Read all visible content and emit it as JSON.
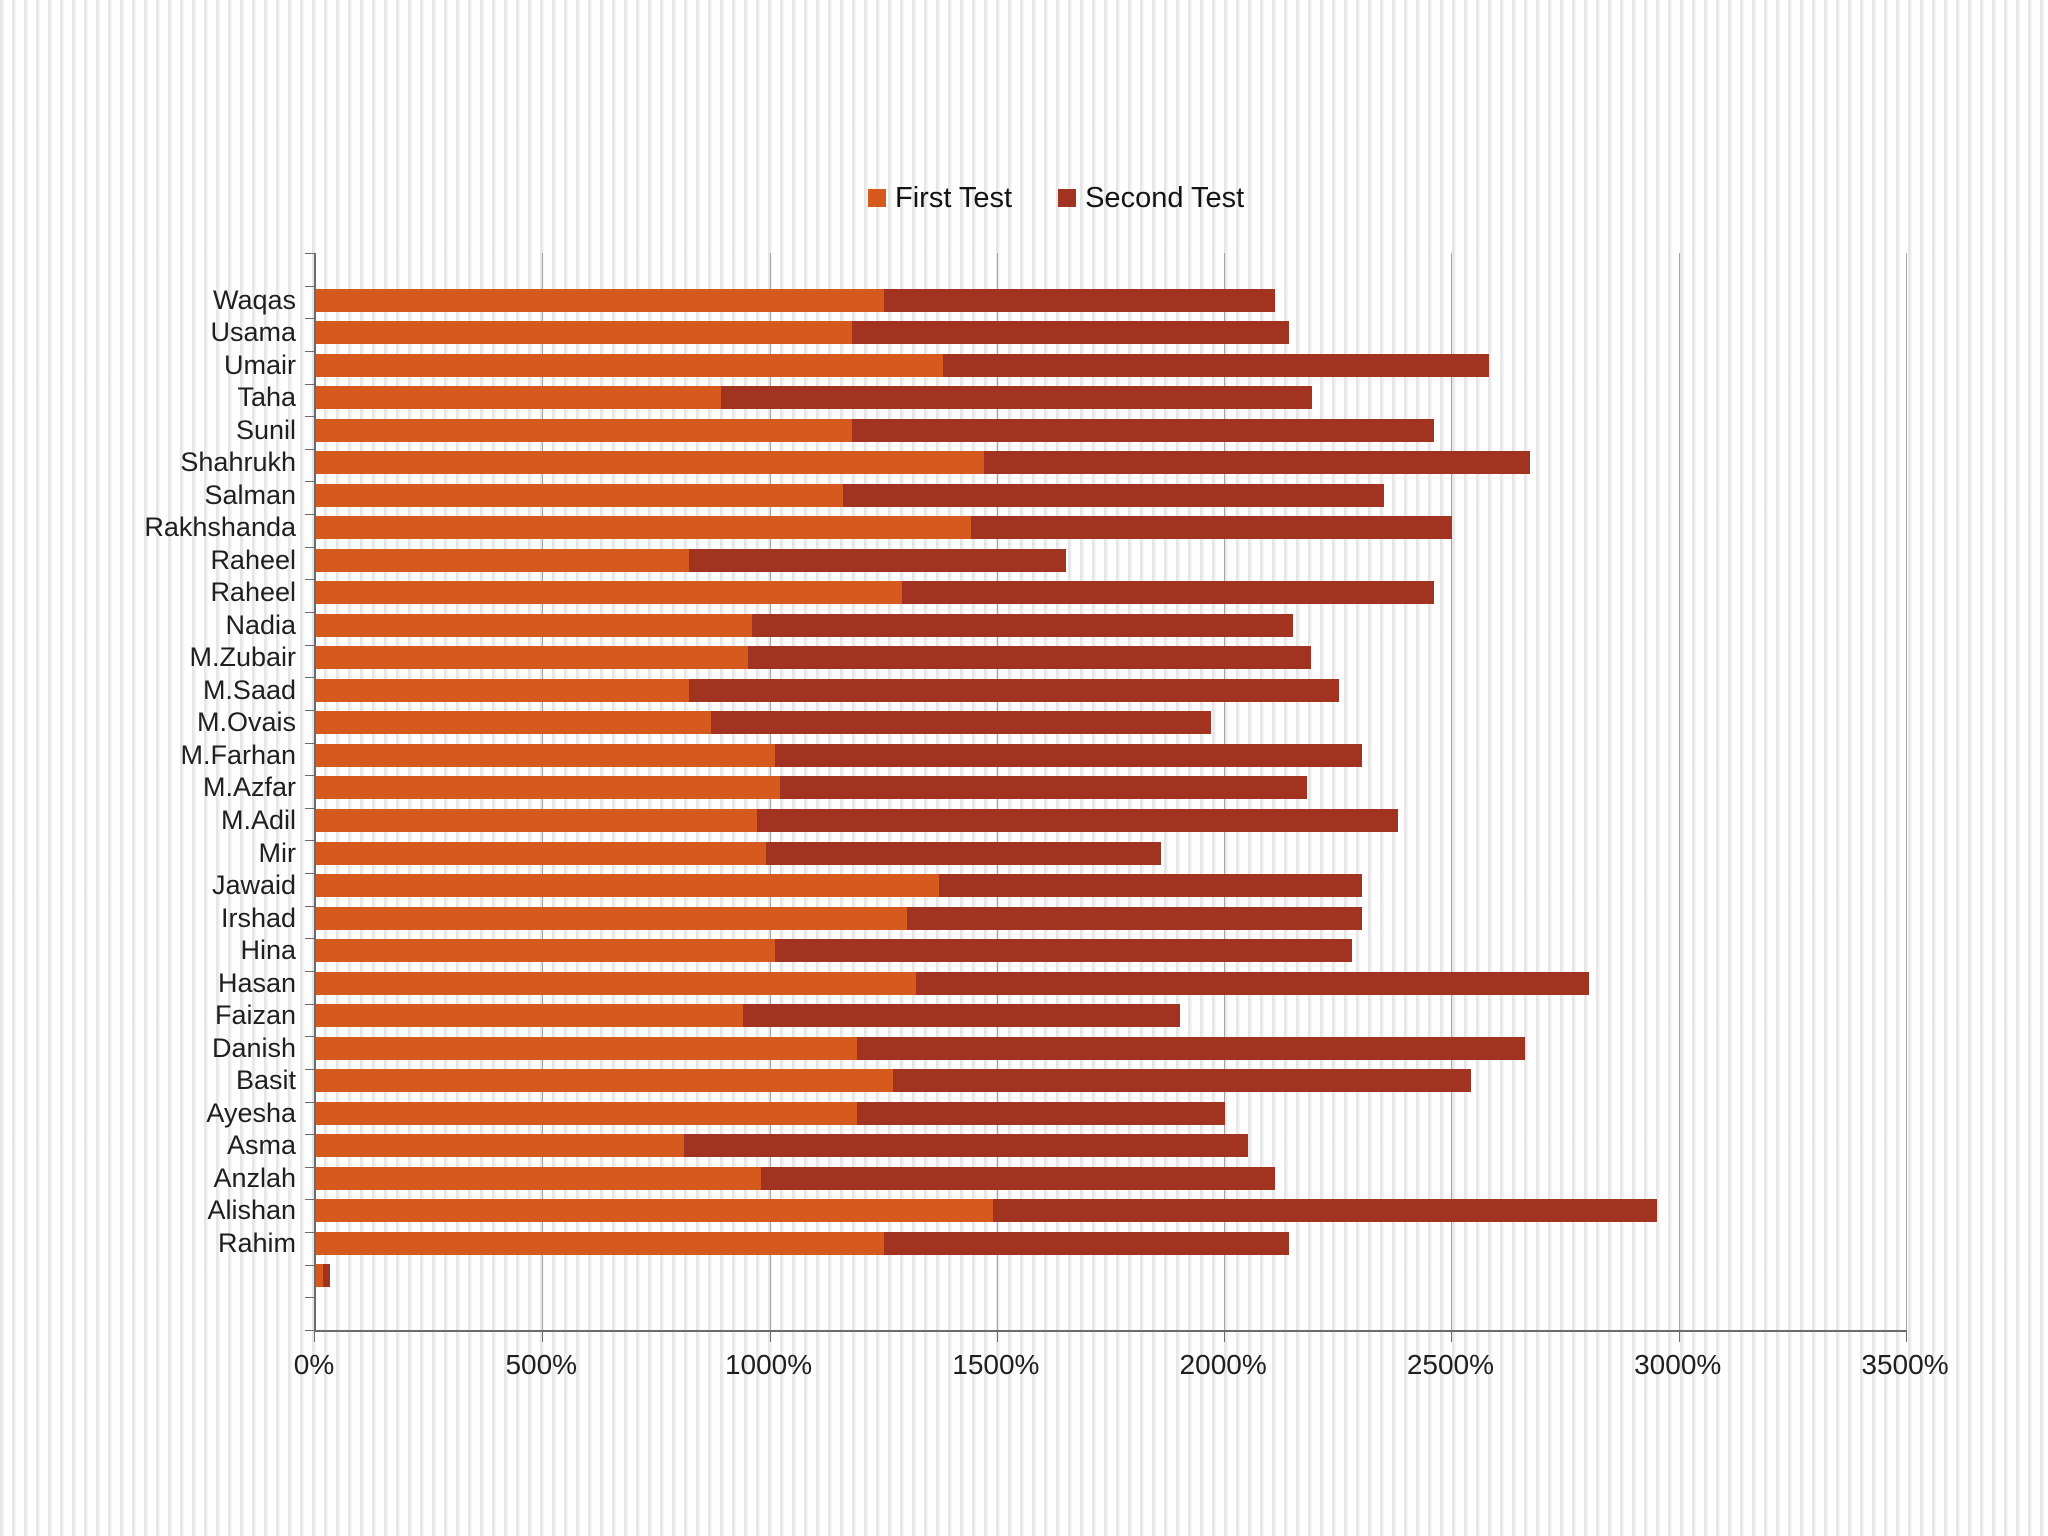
{
  "colors": {
    "first_test": "#D6591D",
    "second_test": "#A23320",
    "gridline": "#A5A5A5",
    "axis_line": "#6B6B6B",
    "text": "#1F1F1F",
    "background_stripe": "#E6E6E6"
  },
  "legend": {
    "position": "top",
    "items": [
      {
        "label": "First Test",
        "color": "#D6591D"
      },
      {
        "label": "Second Test",
        "color": "#A23320"
      }
    ]
  },
  "chart_data": {
    "type": "bar",
    "orientation": "horizontal",
    "stacked": true,
    "title": "",
    "xlabel": "",
    "ylabel": "",
    "grid": "major-vertical",
    "legend_position": "top",
    "categories": [
      "Waqas",
      "Usama",
      "Umair",
      "Taha",
      "Sunil",
      "Shahrukh",
      "Salman",
      "Rakhshanda",
      "Raheel",
      "Raheel",
      "Nadia",
      "M.Zubair",
      "M.Saad",
      "M.Ovais",
      "M.Farhan",
      "M.Azfar",
      "M.Adil",
      "Mir",
      "Jawaid",
      "Irshad",
      "Hina",
      "Hasan",
      "Faizan",
      "Danish",
      "Basit",
      "Ayesha",
      "Asma",
      "Anzlah",
      "Alishan",
      "Rahim",
      ""
    ],
    "series": [
      {
        "name": "First Test",
        "color": "#D6591D",
        "values": [
          1250,
          1180,
          1380,
          890,
          1180,
          1470,
          1160,
          1440,
          820,
          1290,
          960,
          950,
          820,
          870,
          1010,
          1020,
          970,
          990,
          1370,
          1300,
          1010,
          1320,
          940,
          1190,
          1270,
          1190,
          810,
          980,
          1490,
          1250,
          15
        ]
      },
      {
        "name": "Second Test",
        "color": "#A23320",
        "values": [
          860,
          960,
          1200,
          1300,
          1280,
          1200,
          1190,
          1060,
          830,
          1170,
          1190,
          1240,
          1430,
          1100,
          1290,
          1160,
          1410,
          870,
          930,
          1000,
          1270,
          1480,
          960,
          1470,
          1270,
          810,
          1240,
          1130,
          1460,
          890,
          15
        ]
      }
    ],
    "x_axis": {
      "min": 0,
      "max": 3500,
      "step": 500,
      "unit": "%",
      "tick_labels": [
        "0%",
        "500%",
        "1000%",
        "1500%",
        "2000%",
        "2500%",
        "3000%",
        "3500%"
      ]
    }
  }
}
